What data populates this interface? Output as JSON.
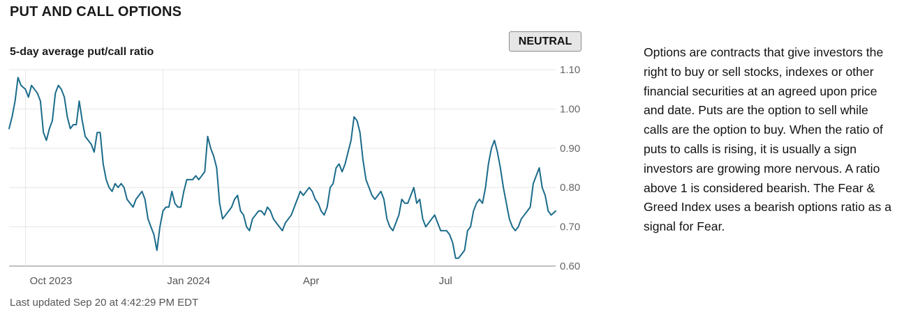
{
  "header": {
    "title": "PUT AND CALL OPTIONS"
  },
  "rating": {
    "label": "NEUTRAL"
  },
  "chart_data": {
    "type": "line",
    "title": "5-day average put/call ratio",
    "xlabel": "",
    "ylabel": "",
    "ylim": [
      0.6,
      1.1
    ],
    "y_ticks": [
      1.1,
      1.0,
      0.9,
      0.8,
      0.7,
      0.6
    ],
    "y_tick_labels": [
      "1.10",
      "1.00",
      "0.90",
      "0.80",
      "0.70",
      "0.60"
    ],
    "y_axis_side": "right",
    "x_ticks": [
      "2023-10-01",
      "2024-01-01",
      "2024-04-01",
      "2024-07-01"
    ],
    "x_tick_labels": [
      "Oct 2023",
      "Jan 2024",
      "Apr",
      "Jul"
    ],
    "xlim": [
      "2023-09-20",
      "2024-09-20"
    ],
    "grid": {
      "horizontal": true,
      "vertical": true
    },
    "legend": "none",
    "series": [
      {
        "color": "#1a6b8a",
        "points": [
          [
            "2023-09-20",
            0.95
          ],
          [
            "2023-09-22",
            0.98
          ],
          [
            "2023-09-24",
            1.02
          ],
          [
            "2023-09-26",
            1.08
          ],
          [
            "2023-09-28",
            1.06
          ],
          [
            "2023-10-01",
            1.05
          ],
          [
            "2023-10-03",
            1.03
          ],
          [
            "2023-10-05",
            1.06
          ],
          [
            "2023-10-07",
            1.05
          ],
          [
            "2023-10-09",
            1.04
          ],
          [
            "2023-10-11",
            1.02
          ],
          [
            "2023-10-13",
            0.94
          ],
          [
            "2023-10-15",
            0.92
          ],
          [
            "2023-10-17",
            0.95
          ],
          [
            "2023-10-19",
            0.97
          ],
          [
            "2023-10-21",
            1.04
          ],
          [
            "2023-10-23",
            1.06
          ],
          [
            "2023-10-25",
            1.05
          ],
          [
            "2023-10-27",
            1.03
          ],
          [
            "2023-10-29",
            0.98
          ],
          [
            "2023-10-31",
            0.95
          ],
          [
            "2023-11-02",
            0.96
          ],
          [
            "2023-11-04",
            0.96
          ],
          [
            "2023-11-06",
            1.02
          ],
          [
            "2023-11-08",
            0.97
          ],
          [
            "2023-11-10",
            0.93
          ],
          [
            "2023-11-12",
            0.92
          ],
          [
            "2023-11-14",
            0.91
          ],
          [
            "2023-11-16",
            0.89
          ],
          [
            "2023-11-18",
            0.94
          ],
          [
            "2023-11-20",
            0.94
          ],
          [
            "2023-11-22",
            0.86
          ],
          [
            "2023-11-24",
            0.82
          ],
          [
            "2023-11-26",
            0.8
          ],
          [
            "2023-11-28",
            0.79
          ],
          [
            "2023-11-30",
            0.81
          ],
          [
            "2023-12-02",
            0.8
          ],
          [
            "2023-12-04",
            0.81
          ],
          [
            "2023-12-06",
            0.8
          ],
          [
            "2023-12-08",
            0.77
          ],
          [
            "2023-12-10",
            0.76
          ],
          [
            "2023-12-12",
            0.75
          ],
          [
            "2023-12-14",
            0.77
          ],
          [
            "2023-12-16",
            0.78
          ],
          [
            "2023-12-18",
            0.79
          ],
          [
            "2023-12-20",
            0.77
          ],
          [
            "2023-12-22",
            0.72
          ],
          [
            "2023-12-24",
            0.7
          ],
          [
            "2023-12-26",
            0.68
          ],
          [
            "2023-12-28",
            0.64
          ],
          [
            "2023-12-30",
            0.7
          ],
          [
            "2024-01-01",
            0.74
          ],
          [
            "2024-01-03",
            0.75
          ],
          [
            "2024-01-05",
            0.75
          ],
          [
            "2024-01-07",
            0.79
          ],
          [
            "2024-01-09",
            0.76
          ],
          [
            "2024-01-11",
            0.75
          ],
          [
            "2024-01-13",
            0.75
          ],
          [
            "2024-01-15",
            0.79
          ],
          [
            "2024-01-17",
            0.82
          ],
          [
            "2024-01-19",
            0.82
          ],
          [
            "2024-01-21",
            0.82
          ],
          [
            "2024-01-23",
            0.83
          ],
          [
            "2024-01-25",
            0.82
          ],
          [
            "2024-01-27",
            0.83
          ],
          [
            "2024-01-29",
            0.84
          ],
          [
            "2024-01-31",
            0.93
          ],
          [
            "2024-02-02",
            0.9
          ],
          [
            "2024-02-04",
            0.88
          ],
          [
            "2024-02-06",
            0.85
          ],
          [
            "2024-02-08",
            0.76
          ],
          [
            "2024-02-10",
            0.72
          ],
          [
            "2024-02-12",
            0.73
          ],
          [
            "2024-02-14",
            0.74
          ],
          [
            "2024-02-16",
            0.75
          ],
          [
            "2024-02-18",
            0.77
          ],
          [
            "2024-02-20",
            0.78
          ],
          [
            "2024-02-22",
            0.74
          ],
          [
            "2024-02-24",
            0.73
          ],
          [
            "2024-02-26",
            0.7
          ],
          [
            "2024-02-28",
            0.69
          ],
          [
            "2024-03-01",
            0.72
          ],
          [
            "2024-03-03",
            0.73
          ],
          [
            "2024-03-05",
            0.74
          ],
          [
            "2024-03-07",
            0.74
          ],
          [
            "2024-03-09",
            0.73
          ],
          [
            "2024-03-11",
            0.75
          ],
          [
            "2024-03-13",
            0.74
          ],
          [
            "2024-03-15",
            0.72
          ],
          [
            "2024-03-17",
            0.71
          ],
          [
            "2024-03-19",
            0.7
          ],
          [
            "2024-03-21",
            0.69
          ],
          [
            "2024-03-23",
            0.71
          ],
          [
            "2024-03-25",
            0.72
          ],
          [
            "2024-03-27",
            0.73
          ],
          [
            "2024-03-29",
            0.75
          ],
          [
            "2024-03-31",
            0.77
          ],
          [
            "2024-04-02",
            0.79
          ],
          [
            "2024-04-04",
            0.78
          ],
          [
            "2024-04-06",
            0.79
          ],
          [
            "2024-04-08",
            0.8
          ],
          [
            "2024-04-10",
            0.79
          ],
          [
            "2024-04-12",
            0.77
          ],
          [
            "2024-04-14",
            0.76
          ],
          [
            "2024-04-16",
            0.74
          ],
          [
            "2024-04-18",
            0.73
          ],
          [
            "2024-04-20",
            0.75
          ],
          [
            "2024-04-22",
            0.8
          ],
          [
            "2024-04-24",
            0.81
          ],
          [
            "2024-04-26",
            0.85
          ],
          [
            "2024-04-28",
            0.86
          ],
          [
            "2024-04-30",
            0.84
          ],
          [
            "2024-05-02",
            0.86
          ],
          [
            "2024-05-04",
            0.89
          ],
          [
            "2024-05-06",
            0.92
          ],
          [
            "2024-05-08",
            0.98
          ],
          [
            "2024-05-10",
            0.97
          ],
          [
            "2024-05-12",
            0.94
          ],
          [
            "2024-05-14",
            0.87
          ],
          [
            "2024-05-16",
            0.82
          ],
          [
            "2024-05-18",
            0.8
          ],
          [
            "2024-05-20",
            0.78
          ],
          [
            "2024-05-22",
            0.77
          ],
          [
            "2024-05-24",
            0.78
          ],
          [
            "2024-05-26",
            0.79
          ],
          [
            "2024-05-28",
            0.77
          ],
          [
            "2024-05-30",
            0.72
          ],
          [
            "2024-06-01",
            0.7
          ],
          [
            "2024-06-03",
            0.69
          ],
          [
            "2024-06-05",
            0.71
          ],
          [
            "2024-06-07",
            0.73
          ],
          [
            "2024-06-09",
            0.77
          ],
          [
            "2024-06-11",
            0.76
          ],
          [
            "2024-06-13",
            0.76
          ],
          [
            "2024-06-15",
            0.78
          ],
          [
            "2024-06-17",
            0.8
          ],
          [
            "2024-06-19",
            0.76
          ],
          [
            "2024-06-21",
            0.77
          ],
          [
            "2024-06-23",
            0.72
          ],
          [
            "2024-06-25",
            0.7
          ],
          [
            "2024-06-27",
            0.71
          ],
          [
            "2024-06-29",
            0.72
          ],
          [
            "2024-07-01",
            0.73
          ],
          [
            "2024-07-03",
            0.71
          ],
          [
            "2024-07-05",
            0.69
          ],
          [
            "2024-07-07",
            0.69
          ],
          [
            "2024-07-09",
            0.69
          ],
          [
            "2024-07-11",
            0.68
          ],
          [
            "2024-07-13",
            0.66
          ],
          [
            "2024-07-15",
            0.62
          ],
          [
            "2024-07-17",
            0.62
          ],
          [
            "2024-07-19",
            0.63
          ],
          [
            "2024-07-21",
            0.64
          ],
          [
            "2024-07-23",
            0.69
          ],
          [
            "2024-07-25",
            0.7
          ],
          [
            "2024-07-27",
            0.74
          ],
          [
            "2024-07-29",
            0.76
          ],
          [
            "2024-07-31",
            0.77
          ],
          [
            "2024-08-02",
            0.76
          ],
          [
            "2024-08-04",
            0.8
          ],
          [
            "2024-08-06",
            0.86
          ],
          [
            "2024-08-08",
            0.9
          ],
          [
            "2024-08-10",
            0.92
          ],
          [
            "2024-08-12",
            0.89
          ],
          [
            "2024-08-14",
            0.85
          ],
          [
            "2024-08-16",
            0.8
          ],
          [
            "2024-08-18",
            0.76
          ],
          [
            "2024-08-20",
            0.72
          ],
          [
            "2024-08-22",
            0.7
          ],
          [
            "2024-08-24",
            0.69
          ],
          [
            "2024-08-26",
            0.7
          ],
          [
            "2024-08-28",
            0.72
          ],
          [
            "2024-08-30",
            0.73
          ],
          [
            "2024-09-01",
            0.74
          ],
          [
            "2024-09-03",
            0.75
          ],
          [
            "2024-09-05",
            0.81
          ],
          [
            "2024-09-07",
            0.83
          ],
          [
            "2024-09-09",
            0.85
          ],
          [
            "2024-09-11",
            0.8
          ],
          [
            "2024-09-13",
            0.78
          ],
          [
            "2024-09-15",
            0.74
          ],
          [
            "2024-09-17",
            0.73
          ],
          [
            "2024-09-20",
            0.74
          ]
        ]
      }
    ]
  },
  "footer": {
    "last_updated": "Last updated Sep 20 at 4:42:29 PM EDT"
  },
  "description": {
    "text": "Options are contracts that give investors the right to buy or sell stocks, indexes or other financial securities at an agreed upon price and date. Puts are the option to sell while calls are the option to buy. When the ratio of puts to calls is rising, it is usually a sign investors are growing more nervous. A ratio above 1 is considered bearish. The Fear & Greed Index uses a bearish options ratio as a signal for Fear."
  }
}
